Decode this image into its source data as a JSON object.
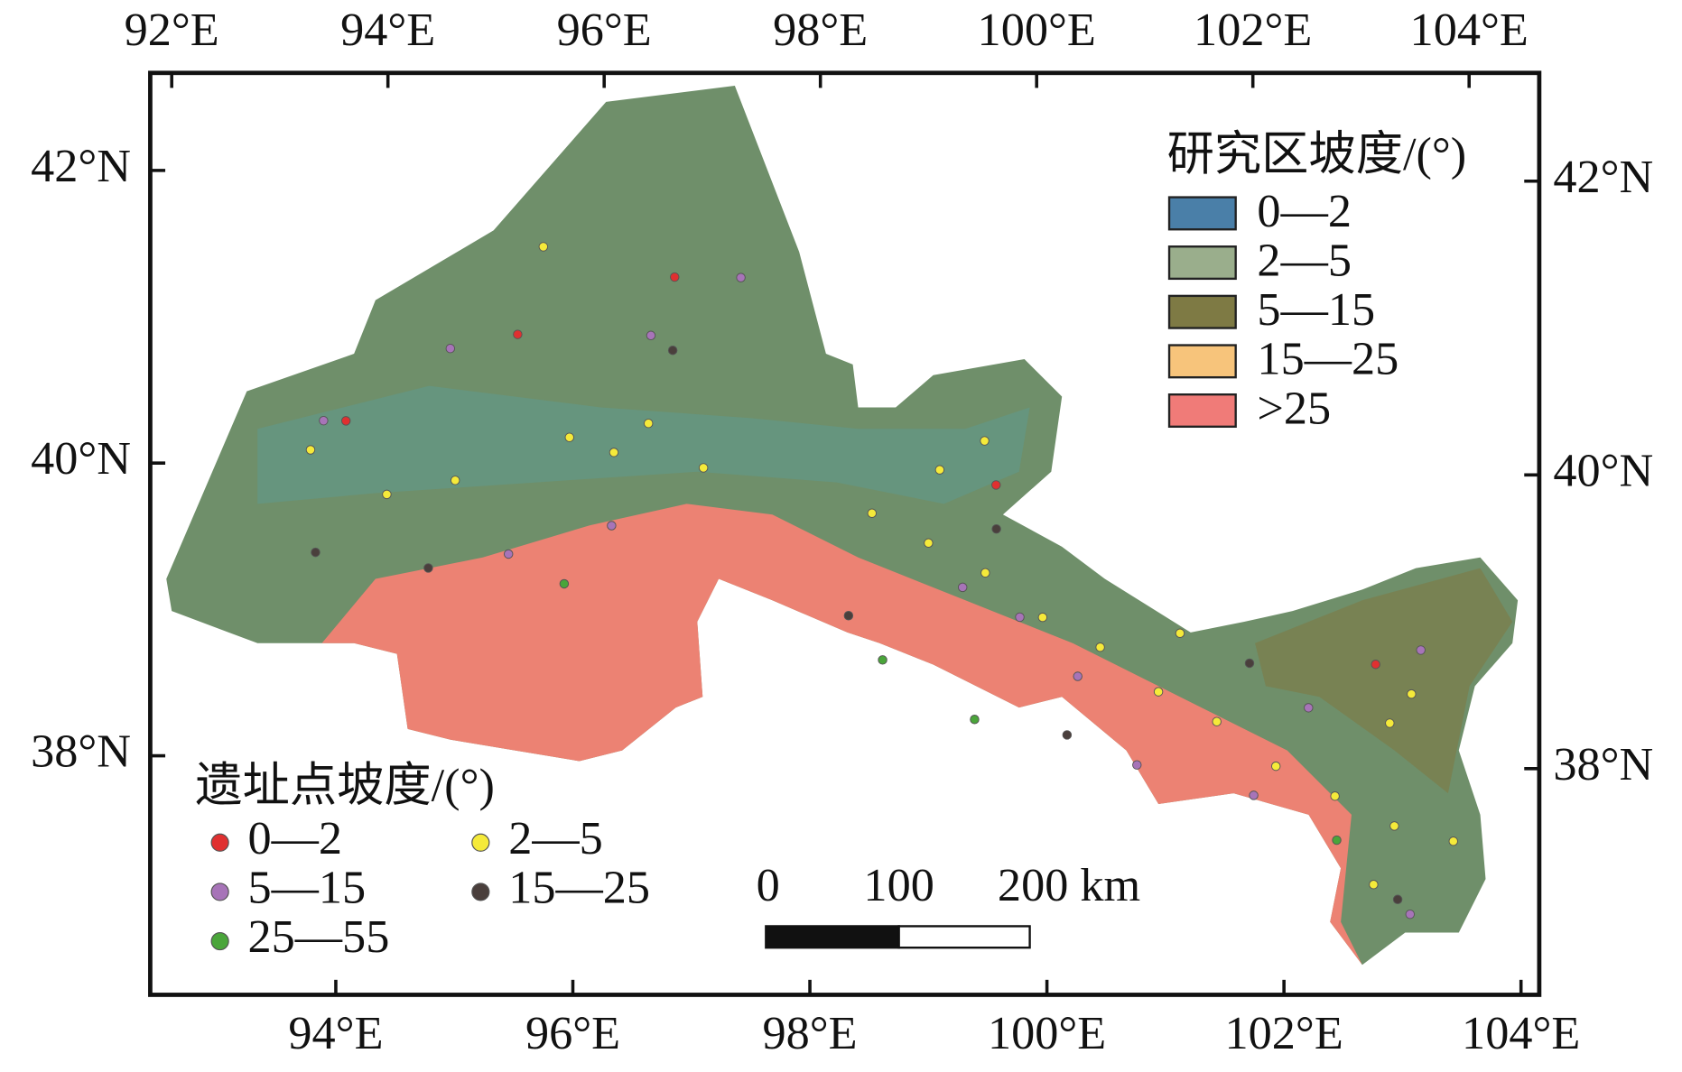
{
  "map": {
    "top_ticks": [
      {
        "value": 92,
        "label": "92°E"
      },
      {
        "value": 94,
        "label": "94°E"
      },
      {
        "value": 96,
        "label": "96°E"
      },
      {
        "value": 98,
        "label": "98°E"
      },
      {
        "value": 100,
        "label": "100°E"
      },
      {
        "value": 102,
        "label": "102°E"
      },
      {
        "value": 104,
        "label": "104°E"
      }
    ],
    "bottom_ticks": [
      {
        "value": 94,
        "label": "94°E"
      },
      {
        "value": 96,
        "label": "96°E"
      },
      {
        "value": 98,
        "label": "98°E"
      },
      {
        "value": 100,
        "label": "100°E"
      },
      {
        "value": 102,
        "label": "102°E"
      },
      {
        "value": 104,
        "label": "104°E"
      }
    ],
    "left_ticks": [
      {
        "value": 42,
        "label": "42°N"
      },
      {
        "value": 40,
        "label": "40°N"
      },
      {
        "value": 38,
        "label": "38°N"
      }
    ],
    "right_ticks": [
      {
        "value": 42,
        "label": "42°N"
      },
      {
        "value": 40,
        "label": "40°N"
      },
      {
        "value": 38,
        "label": "38°N"
      }
    ],
    "area_legend": {
      "title": "研究区坡度/(°)",
      "items": [
        {
          "label": "0—2",
          "color": "#4a7fa8"
        },
        {
          "label": "2—5",
          "color": "#9aae8c"
        },
        {
          "label": "5—15",
          "color": "#7e7a44"
        },
        {
          "label": "15—25",
          "color": "#f7c47b"
        },
        {
          "label": "&gt;25",
          "color": "#f07b78"
        }
      ]
    },
    "site_legend": {
      "title": "遗址点坡度/(°)",
      "groups": [
        {
          "label": "0—2",
          "color": "#e03030",
          "points": [
            [
              93.8,
              40.3
            ],
            [
              96.7,
              41.3
            ],
            [
              95.3,
              40.9
            ],
            [
              102.9,
              38.7
            ],
            [
              99.6,
              39.9
            ]
          ]
        },
        {
          "label": "2—5",
          "color": "#f5ea3a",
          "points": [
            [
              99.1,
              40.0
            ],
            [
              98.5,
              39.7
            ],
            [
              99.0,
              39.5
            ],
            [
              99.5,
              39.3
            ],
            [
              100.0,
              39.0
            ],
            [
              100.5,
              38.8
            ],
            [
              101.0,
              38.5
            ],
            [
              101.5,
              38.3
            ],
            [
              102.0,
              38.0
            ],
            [
              102.5,
              37.8
            ],
            [
              103.0,
              37.6
            ],
            [
              103.0,
              38.3
            ],
            [
              103.2,
              38.5
            ],
            [
              96.5,
              40.3
            ],
            [
              95.8,
              40.2
            ],
            [
              96.2,
              40.1
            ],
            [
              94.8,
              39.9
            ],
            [
              97.0,
              40.0
            ],
            [
              94.2,
              39.8
            ],
            [
              93.5,
              40.1
            ],
            [
              95.5,
              41.5
            ],
            [
              99.5,
              40.2
            ],
            [
              101.2,
              38.9
            ],
            [
              102.8,
              37.2
            ],
            [
              103.5,
              37.5
            ]
          ]
        },
        {
          "label": "5—15",
          "color": "#a774b8",
          "points": [
            [
              94.7,
              40.8
            ],
            [
              96.5,
              40.9
            ],
            [
              95.3,
              39.4
            ],
            [
              96.2,
              39.6
            ],
            [
              99.8,
              39.0
            ],
            [
              100.3,
              38.6
            ],
            [
              100.8,
              38.0
            ],
            [
              101.8,
              37.8
            ],
            [
              102.3,
              38.4
            ],
            [
              103.3,
              38.8
            ],
            [
              103.1,
              37.0
            ],
            [
              99.3,
              39.2
            ],
            [
              97.3,
              41.3
            ],
            [
              93.6,
              40.3
            ]
          ]
        },
        {
          "label": "15—25",
          "color": "#4a3f3c",
          "points": [
            [
              93.6,
              39.4
            ],
            [
              94.6,
              39.3
            ],
            [
              96.7,
              40.8
            ],
            [
              98.3,
              39.0
            ],
            [
              100.2,
              38.2
            ],
            [
              101.8,
              38.7
            ],
            [
              103.0,
              37.1
            ],
            [
              99.6,
              39.6
            ]
          ]
        },
        {
          "label": "25—55",
          "color": "#4aa53a",
          "points": [
            [
              95.8,
              39.2
            ],
            [
              98.6,
              38.7
            ],
            [
              102.5,
              37.5
            ],
            [
              99.4,
              38.3
            ]
          ]
        }
      ]
    },
    "scale_bar": {
      "labels": [
        "0",
        "100",
        "200 km"
      ]
    }
  }
}
